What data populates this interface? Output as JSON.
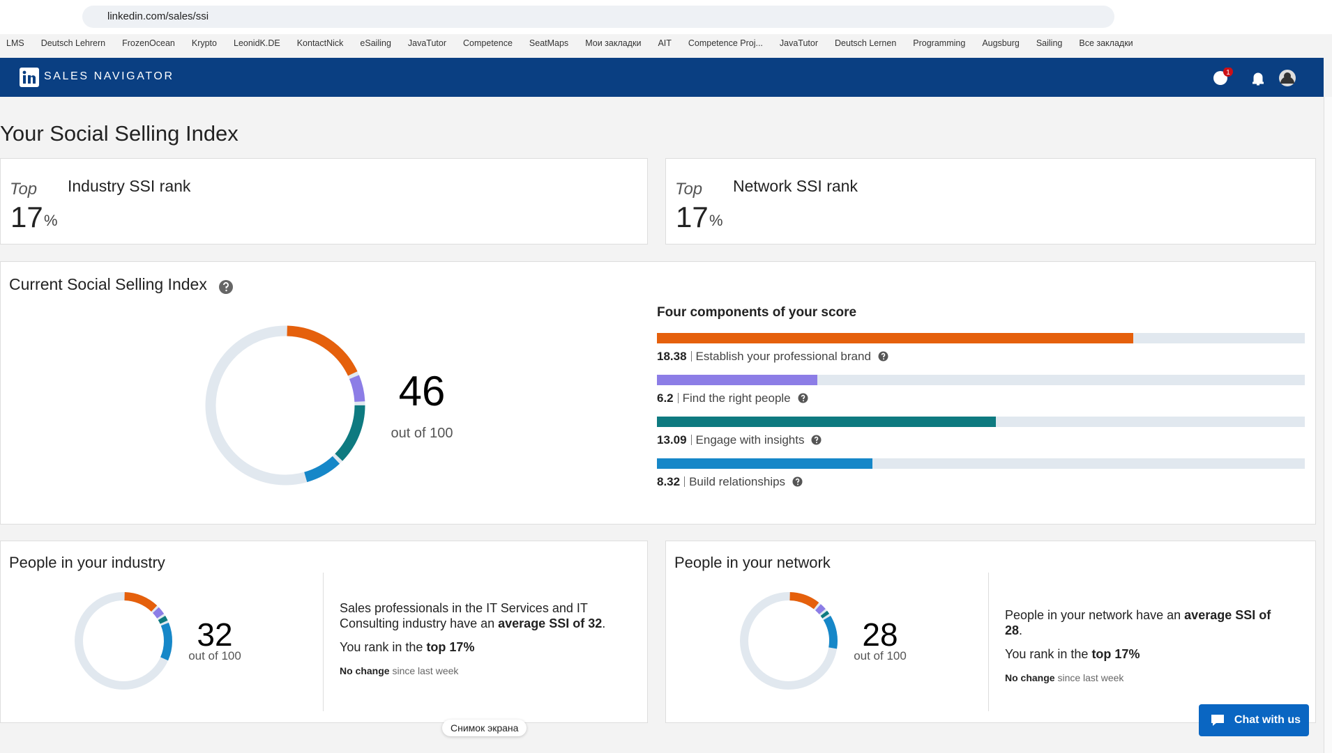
{
  "browser": {
    "url": "linkedin.com/sales/ssi",
    "bookmarks": [
      "LMS",
      "Deutsch Lehrern",
      "FrozenOcean",
      "Krypto",
      "LeonidK.DE",
      "KontactNick",
      "eSailing",
      "JavaTutor",
      "Competence",
      "SeatMaps",
      "Мои закладки",
      "AIT",
      "Competence Proj...",
      "JavaTutor",
      "Deutsch Lernen",
      "Programming",
      "Augsburg",
      "Sailing",
      "Все закладки"
    ],
    "tooltip": "Снимок экрана"
  },
  "header": {
    "brand": "SALES NAVIGATOR",
    "badge": "1"
  },
  "title": "Your Social Selling Index",
  "ranks": [
    {
      "prefix": "Top",
      "value": 17,
      "unit": "%",
      "label": "Industry SSI rank"
    },
    {
      "prefix": "Top",
      "value": 17,
      "unit": "%",
      "label": "Network SSI rank"
    }
  ],
  "current": {
    "title": "Current Social Selling Index",
    "score": 46,
    "caption": "out of 100",
    "lim": [
      0,
      100
    ],
    "components_title": "Four components of your score",
    "xlim": [
      0,
      25
    ],
    "components": [
      {
        "value": 18.38,
        "label": "Establish your professional brand",
        "color": "#e5600c"
      },
      {
        "value": 6.2,
        "label": "Find the right people",
        "color": "#8c7de6"
      },
      {
        "value": 13.09,
        "label": "Engage with insights",
        "color": "#0e7a80"
      },
      {
        "value": 8.32,
        "label": "Build relationships",
        "color": "#1687c8"
      }
    ]
  },
  "groups": [
    {
      "title": "People in your industry",
      "score": 32,
      "caption": "out of 100",
      "lim": [
        0,
        100
      ],
      "segments": [
        12.5,
        3.5,
        2.5,
        13.5
      ],
      "lines": [
        {
          "parts": [
            {
              "text": "Sales professionals in the IT Services and IT Consulting industry have an "
            },
            {
              "text": "average SSI of 32",
              "bold": true
            },
            {
              "text": "."
            }
          ]
        },
        {
          "parts": [
            {
              "text": "You rank in the "
            },
            {
              "text": "top 17%",
              "bold": true
            }
          ]
        },
        {
          "parts": [
            {
              "text": "No change",
              "bold": true
            },
            {
              "text": " since last week"
            }
          ]
        }
      ]
    },
    {
      "title": "People in your network",
      "score": 28,
      "caption": "out of 100",
      "lim": [
        0,
        100
      ],
      "segments": [
        11,
        3,
        2,
        12
      ],
      "lines": [
        {
          "parts": [
            {
              "text": "People in your network have an "
            },
            {
              "text": "average SSI of 28",
              "bold": true
            },
            {
              "text": "."
            }
          ]
        },
        {
          "parts": [
            {
              "text": "You rank in the "
            },
            {
              "text": "top 17%",
              "bold": true
            }
          ]
        },
        {
          "parts": [
            {
              "text": "No change",
              "bold": true
            },
            {
              "text": " since last week"
            }
          ]
        }
      ]
    }
  ],
  "chat": "Chat with us"
}
